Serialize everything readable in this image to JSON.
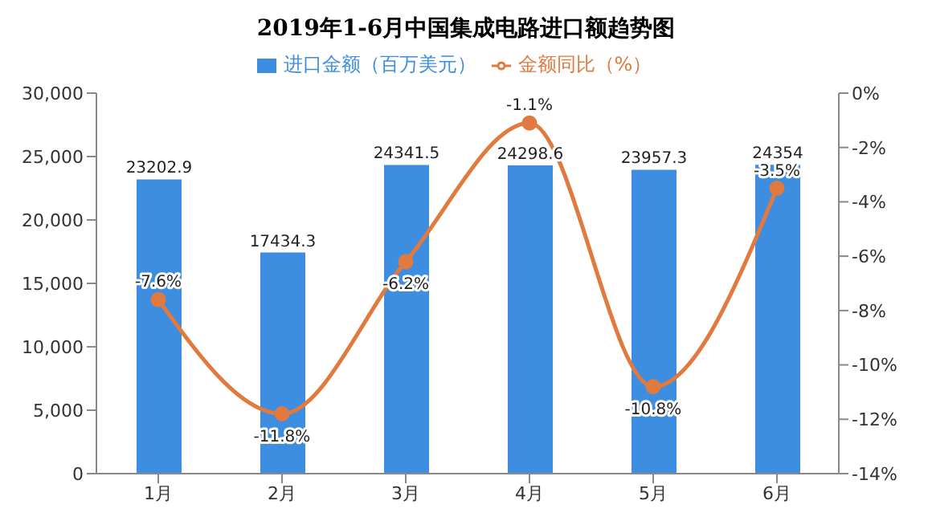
{
  "chart_data": {
    "type": "bar",
    "title": "2019年1-6月中国集成电路进口额趋势图",
    "categories": [
      "1月",
      "2月",
      "3月",
      "4月",
      "5月",
      "6月"
    ],
    "series": [
      {
        "name": "进口金额（百万美元）",
        "color": "#3d8ee0",
        "values": [
          23202.9,
          17434.3,
          24341.5,
          24298.6,
          23957.3,
          24354
        ],
        "value_labels": [
          "23202.9",
          "17434.3",
          "24341.5",
          "24298.6",
          "23957.3",
          "24354"
        ]
      },
      {
        "name": "金额同比（%）",
        "type": "line",
        "axis": "y2",
        "color": "#e07a3f",
        "values": [
          -7.6,
          -11.8,
          -6.2,
          -1.1,
          -10.8,
          -3.5
        ],
        "value_labels": [
          "-7.6%",
          "-11.8%",
          "-6.2%",
          "-1.1%",
          "-10.8%",
          "-3.5%"
        ]
      }
    ],
    "ylim": [
      0,
      30000
    ],
    "yticks": [
      0,
      {
        "value": 5000,
        "label": "5,000"
      },
      {
        "value": 10000,
        "label": "10,000"
      },
      {
        "value": 15000,
        "label": "15,000"
      },
      {
        "value": 20000,
        "label": "20,000"
      },
      {
        "value": 25000,
        "label": "25,000"
      },
      {
        "value": 30000,
        "label": "30,000"
      }
    ],
    "y2lim": [
      -14,
      0
    ],
    "y2ticks": [
      {
        "value": -14,
        "label": "-14%"
      },
      {
        "value": -12,
        "label": "-12%"
      },
      {
        "value": -10,
        "label": "-10%"
      },
      {
        "value": -8,
        "label": "-8%"
      },
      {
        "value": -6,
        "label": "-6%"
      },
      {
        "value": -4,
        "label": "-4%"
      },
      {
        "value": -2,
        "label": "-2%"
      },
      {
        "value": 0,
        "label": "0%"
      }
    ],
    "legend": "top",
    "grid": false,
    "marker": "circle"
  }
}
